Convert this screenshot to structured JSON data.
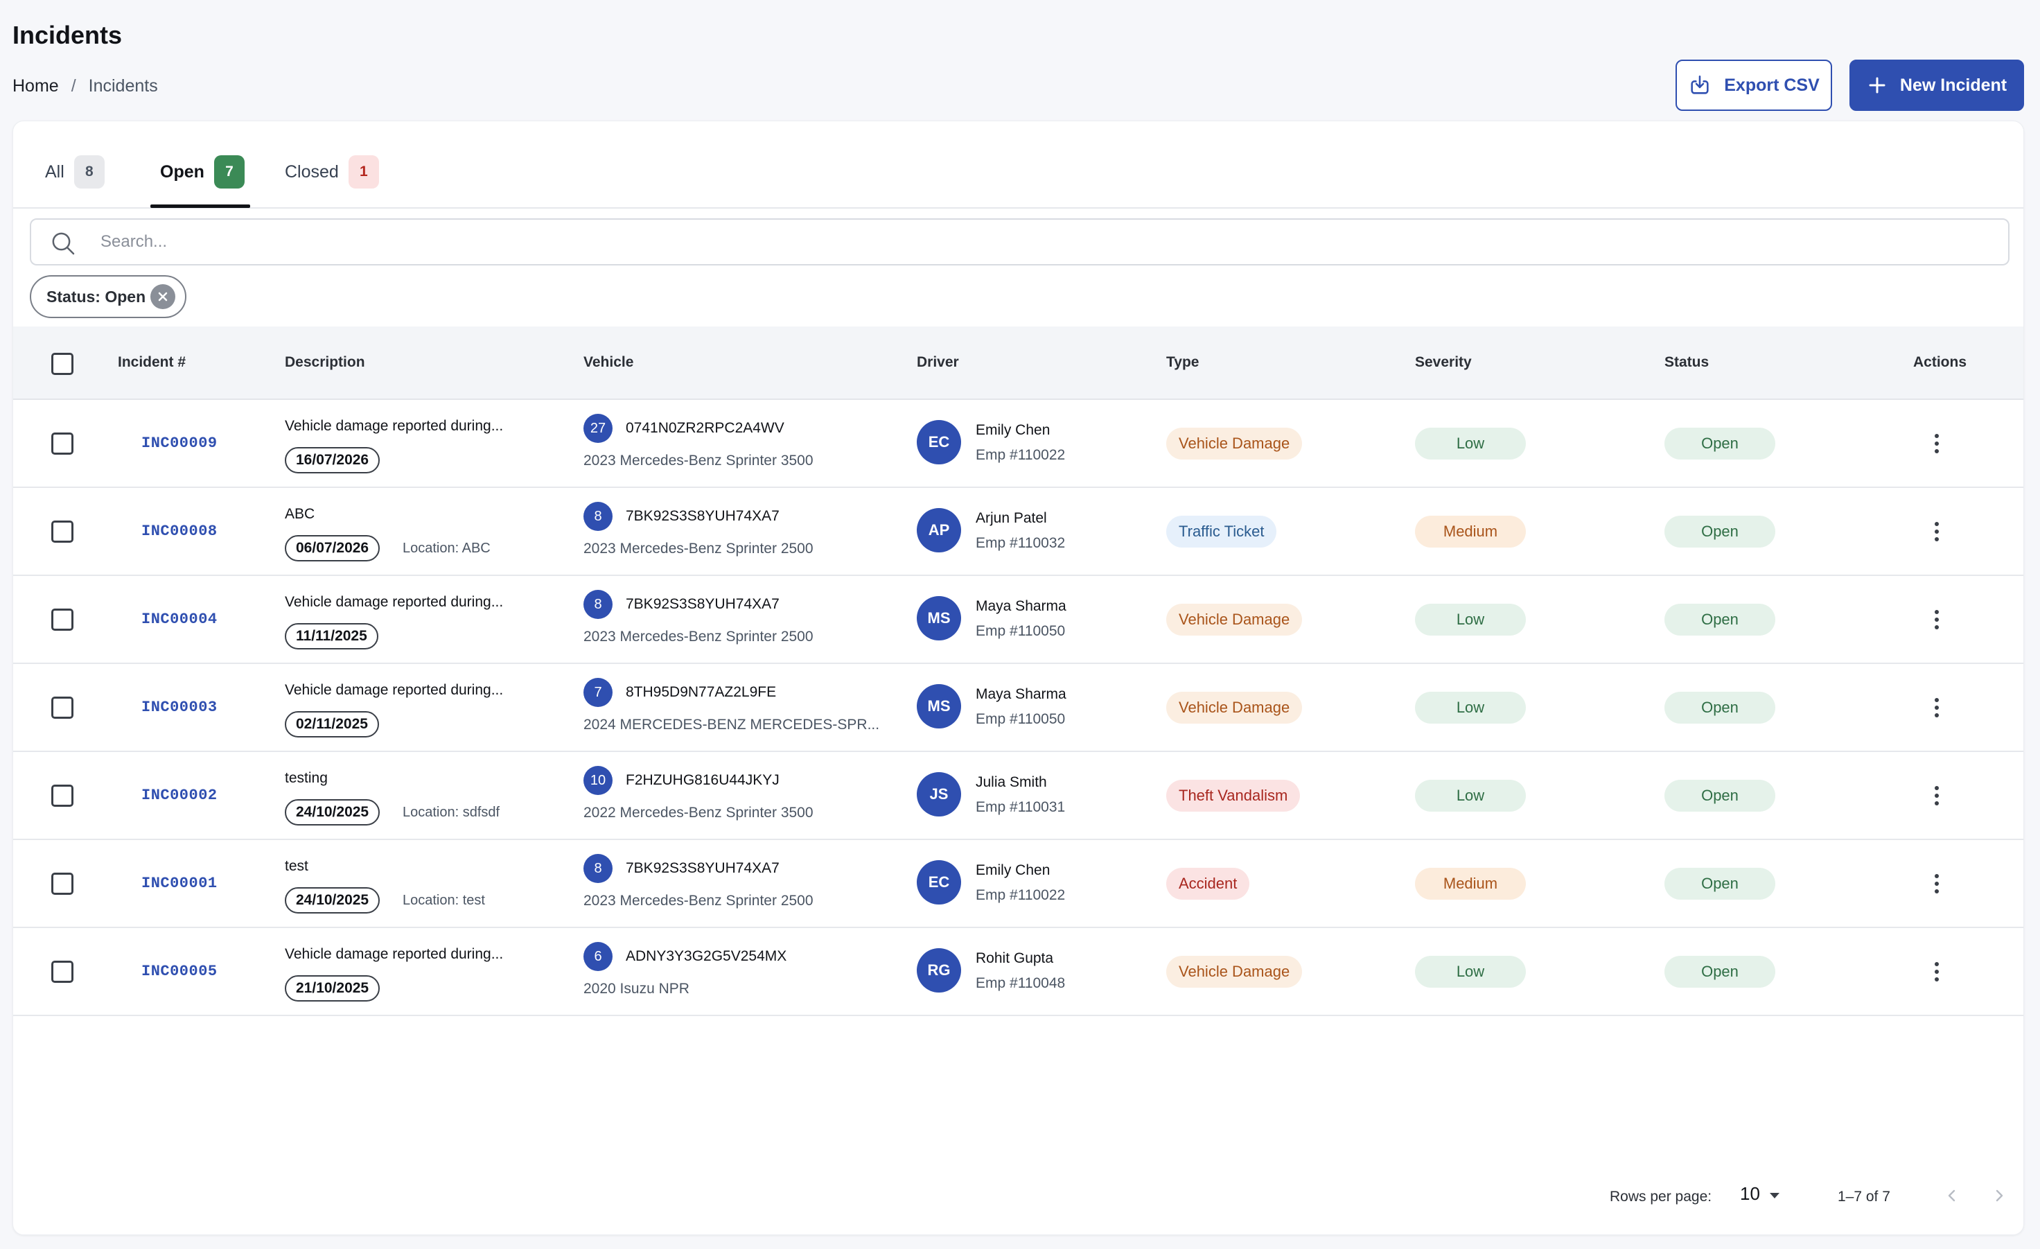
{
  "page": {
    "title": "Incidents"
  },
  "breadcrumb": {
    "home": "Home",
    "separator": "/",
    "current": "Incidents"
  },
  "actions": {
    "export_label": "Export CSV",
    "new_label": "New Incident"
  },
  "tabs": [
    {
      "label": "All",
      "count": "8"
    },
    {
      "label": "Open",
      "count": "7"
    },
    {
      "label": "Closed",
      "count": "1"
    }
  ],
  "search": {
    "placeholder": "Search..."
  },
  "filters": {
    "status_chip": "Status: Open"
  },
  "table": {
    "headers": [
      "Incident #",
      "Description",
      "Vehicle",
      "Driver",
      "Type",
      "Severity",
      "Status",
      "Actions"
    ],
    "rows": [
      {
        "id": "INC00009",
        "description": "Vehicle damage reported during...",
        "date": "16/07/2026",
        "location": "",
        "vehicle_num": "27",
        "vin": "0741N0ZR2RPC2A4WV",
        "model": "2023 Mercedes-Benz Sprinter 3500",
        "initials": "EC",
        "driver": "Emily Chen",
        "emp": "Emp #110022",
        "type": "Vehicle Damage",
        "severity": "Low",
        "status": "Open"
      },
      {
        "id": "INC00008",
        "description": "ABC",
        "date": "06/07/2026",
        "location": "Location: ABC",
        "vehicle_num": "8",
        "vin": "7BK92S3S8YUH74XA7",
        "model": "2023 Mercedes-Benz Sprinter 2500",
        "initials": "AP",
        "driver": "Arjun Patel",
        "emp": "Emp #110032",
        "type": "Traffic Ticket",
        "severity": "Medium",
        "status": "Open"
      },
      {
        "id": "INC00004",
        "description": "Vehicle damage reported during...",
        "date": "11/11/2025",
        "location": "",
        "vehicle_num": "8",
        "vin": "7BK92S3S8YUH74XA7",
        "model": "2023 Mercedes-Benz Sprinter 2500",
        "initials": "MS",
        "driver": "Maya Sharma",
        "emp": "Emp #110050",
        "type": "Vehicle Damage",
        "severity": "Low",
        "status": "Open"
      },
      {
        "id": "INC00003",
        "description": "Vehicle damage reported during...",
        "date": "02/11/2025",
        "location": "",
        "vehicle_num": "7",
        "vin": "8TH95D9N77AZ2L9FE",
        "model": "2024 MERCEDES-BENZ MERCEDES-SPR...",
        "initials": "MS",
        "driver": "Maya Sharma",
        "emp": "Emp #110050",
        "type": "Vehicle Damage",
        "severity": "Low",
        "status": "Open"
      },
      {
        "id": "INC00002",
        "description": "testing",
        "date": "24/10/2025",
        "location": "Location: sdfsdf",
        "vehicle_num": "10",
        "vin": "F2HZUHG816U44JKYJ",
        "model": "2022 Mercedes-Benz Sprinter 3500",
        "initials": "JS",
        "driver": "Julia Smith",
        "emp": "Emp #110031",
        "type": "Theft Vandalism",
        "severity": "Low",
        "status": "Open"
      },
      {
        "id": "INC00001",
        "description": "test",
        "date": "24/10/2025",
        "location": "Location: test",
        "vehicle_num": "8",
        "vin": "7BK92S3S8YUH74XA7",
        "model": "2023 Mercedes-Benz Sprinter 2500",
        "initials": "EC",
        "driver": "Emily Chen",
        "emp": "Emp #110022",
        "type": "Accident",
        "severity": "Medium",
        "status": "Open"
      },
      {
        "id": "INC00005",
        "description": "Vehicle damage reported during...",
        "date": "21/10/2025",
        "location": "",
        "vehicle_num": "6",
        "vin": "ADNY3Y3G2G5V254MX",
        "model": "2020 Isuzu NPR",
        "initials": "RG",
        "driver": "Rohit Gupta",
        "emp": "Emp #110048",
        "type": "Vehicle Damage",
        "severity": "Low",
        "status": "Open"
      }
    ]
  },
  "pagination": {
    "rows_per_page_label": "Rows per page:",
    "rows_per_page": "10",
    "range": "1–7 of 7"
  },
  "colors": {
    "accent": "#2f4fb0",
    "open_tab": "#3b8a56"
  },
  "icons": {
    "export": "download-icon",
    "new": "plus-icon",
    "search": "search-icon",
    "clear": "close-circle-icon",
    "actions": "more-vertical-icon",
    "rpp": "caret-down-icon",
    "prev": "chevron-left-icon",
    "next": "chevron-right-icon"
  }
}
